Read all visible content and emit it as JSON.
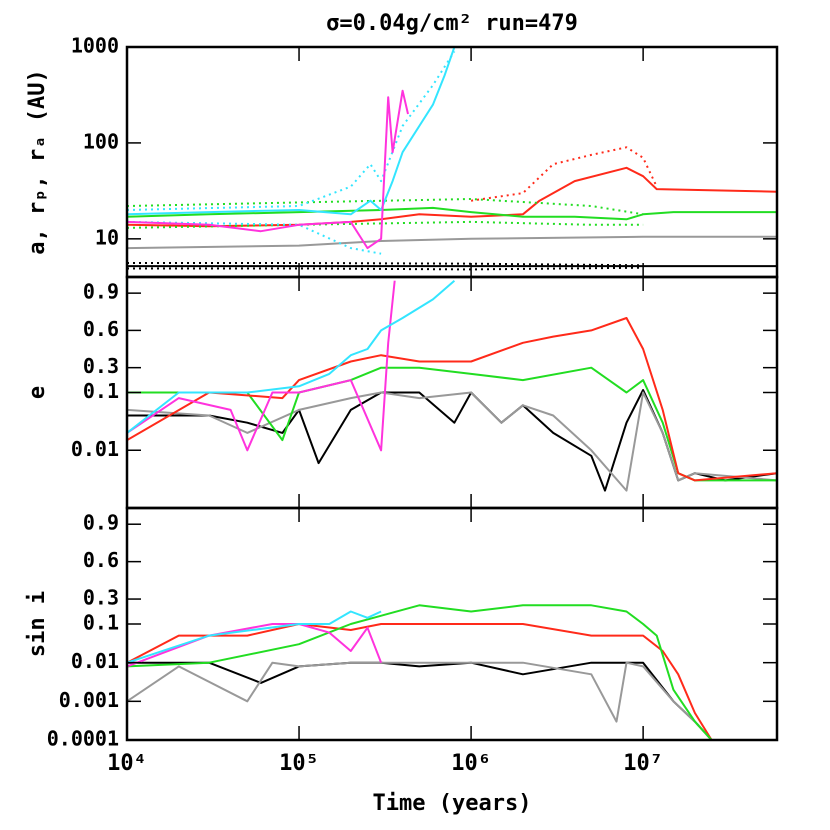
{
  "chart_data": [
    {
      "type": "line",
      "title": "σ=0.04g/cm²   run=479",
      "ylabel": "a, rₚ, rₐ (AU)",
      "xscale": "log",
      "xlim": [
        10000,
        60000000
      ],
      "yscale": "log",
      "ylim": [
        4,
        1000
      ],
      "yticks": [
        10,
        100,
        1000
      ],
      "series": [
        {
          "color": "#000000",
          "x": [
            10000,
            100000,
            1000000,
            10000000,
            60000000
          ],
          "values": [
            5.2,
            5.2,
            5.2,
            5.2,
            5.2
          ]
        },
        {
          "color": "#000000",
          "dash": true,
          "x": [
            10000,
            100000,
            1000000,
            10000000
          ],
          "values": [
            5.6,
            5.6,
            5.5,
            5.3
          ]
        },
        {
          "color": "#000000",
          "dash": true,
          "x": [
            10000,
            100000,
            1000000,
            10000000
          ],
          "values": [
            4.9,
            4.9,
            4.8,
            5.0
          ]
        },
        {
          "color": "#999999",
          "x": [
            10000,
            100000,
            300000,
            1000000,
            10000000,
            60000000
          ],
          "values": [
            8,
            8.5,
            9.5,
            10,
            10.5,
            10.5
          ]
        },
        {
          "color": "#ff2a1a",
          "x": [
            10000,
            30000,
            100000,
            200000,
            300000,
            500000,
            1000000,
            2000000,
            2500000,
            4000000,
            8000000,
            10000000,
            12000000,
            60000000
          ],
          "values": [
            14,
            13.5,
            14,
            15,
            16,
            18,
            17,
            18,
            25,
            40,
            55,
            45,
            33,
            31
          ]
        },
        {
          "color": "#ff2a1a",
          "dash": true,
          "x": [
            1000000,
            2000000,
            3000000,
            5000000,
            8000000,
            10000000,
            12000000
          ],
          "values": [
            25,
            30,
            60,
            75,
            90,
            70,
            35
          ]
        },
        {
          "color": "#22dd22",
          "x": [
            10000,
            30000,
            100000,
            300000,
            600000,
            1000000,
            2000000,
            4000000,
            8000000,
            10000000,
            15000000,
            60000000
          ],
          "values": [
            17,
            18,
            19,
            20,
            21,
            19,
            17,
            17,
            16,
            18,
            19,
            19
          ]
        },
        {
          "color": "#22dd22",
          "dash": true,
          "x": [
            10000,
            100000,
            1000000,
            5000000,
            10000000
          ],
          "values": [
            22,
            24,
            26,
            22,
            18
          ]
        },
        {
          "color": "#22dd22",
          "dash": true,
          "x": [
            10000,
            100000,
            1000000,
            5000000,
            10000000
          ],
          "values": [
            13,
            14,
            15,
            14,
            14
          ]
        },
        {
          "color": "#33e5ff",
          "x": [
            10000,
            30000,
            100000,
            200000,
            260000,
            300000,
            350000,
            400000,
            500000,
            600000,
            700000,
            800000
          ],
          "values": [
            18,
            19,
            20,
            18,
            25,
            20,
            40,
            80,
            150,
            250,
            500,
            1000
          ]
        },
        {
          "color": "#33e5ff",
          "dash": true,
          "x": [
            10000,
            100000,
            200000,
            260000,
            300000,
            400000,
            600000,
            800000
          ],
          "values": [
            20,
            22,
            35,
            60,
            40,
            150,
            400,
            900
          ]
        },
        {
          "color": "#33e5ff",
          "dash": true,
          "x": [
            10000,
            100000,
            200000,
            300000
          ],
          "values": [
            15,
            14,
            8,
            7
          ]
        },
        {
          "color": "#ff33dd",
          "x": [
            10000,
            30000,
            60000,
            100000,
            200000,
            250000,
            300000,
            330000,
            350000,
            400000,
            430000
          ],
          "values": [
            15,
            14,
            12,
            14,
            15,
            8,
            10,
            300,
            80,
            350,
            200
          ]
        }
      ]
    },
    {
      "type": "line",
      "ylabel": "e",
      "xscale": "log",
      "xlim": [
        10000,
        60000000
      ],
      "yscale": "log-linear",
      "linthresh": 0.1,
      "ylim": [
        0.001,
        1.03
      ],
      "yticks": [
        0.01,
        0.1,
        0.3,
        0.6,
        0.9
      ],
      "series": [
        {
          "color": "#000000",
          "x": [
            10000,
            30000,
            50000,
            80000,
            100000,
            130000,
            200000,
            300000,
            500000,
            800000,
            1000000,
            1500000,
            2000000,
            3000000,
            5000000,
            6000000,
            8000000,
            10000000,
            13000000,
            16000000,
            20000000,
            30000000,
            60000000
          ],
          "values": [
            0.04,
            0.04,
            0.03,
            0.02,
            0.05,
            0.006,
            0.05,
            0.1,
            0.1,
            0.03,
            0.1,
            0.03,
            0.06,
            0.02,
            0.008,
            0.002,
            0.03,
            0.12,
            0.02,
            0.003,
            0.004,
            0.003,
            0.004
          ]
        },
        {
          "color": "#999999",
          "x": [
            10000,
            30000,
            50000,
            100000,
            200000,
            300000,
            500000,
            1000000,
            1500000,
            2000000,
            3000000,
            5000000,
            8000000,
            10000000,
            13000000,
            16000000,
            20000000,
            60000000
          ],
          "values": [
            0.05,
            0.04,
            0.02,
            0.05,
            0.08,
            0.1,
            0.08,
            0.1,
            0.03,
            0.06,
            0.04,
            0.01,
            0.002,
            0.1,
            0.02,
            0.003,
            0.004,
            0.003
          ]
        },
        {
          "color": "#22dd22",
          "x": [
            10000,
            20000,
            50000,
            80000,
            100000,
            200000,
            300000,
            500000,
            1000000,
            2000000,
            5000000,
            8000000,
            10000000,
            13000000,
            16000000,
            20000000,
            60000000
          ],
          "values": [
            0.1,
            0.1,
            0.1,
            0.015,
            0.1,
            0.2,
            0.3,
            0.3,
            0.25,
            0.2,
            0.3,
            0.1,
            0.2,
            0.03,
            0.004,
            0.003,
            0.003
          ]
        },
        {
          "color": "#ff2a1a",
          "x": [
            10000,
            30000,
            80000,
            100000,
            200000,
            300000,
            500000,
            1000000,
            2000000,
            3000000,
            5000000,
            8000000,
            10000000,
            13000000,
            16000000,
            20000000,
            60000000
          ],
          "values": [
            0.015,
            0.1,
            0.08,
            0.2,
            0.35,
            0.4,
            0.35,
            0.35,
            0.5,
            0.55,
            0.6,
            0.7,
            0.45,
            0.05,
            0.004,
            0.003,
            0.004
          ]
        },
        {
          "color": "#ff33dd",
          "x": [
            10000,
            20000,
            40000,
            50000,
            70000,
            100000,
            200000,
            300000,
            330000,
            360000
          ],
          "values": [
            0.02,
            0.08,
            0.05,
            0.01,
            0.1,
            0.1,
            0.2,
            0.01,
            0.5,
            1.0
          ]
        },
        {
          "color": "#33e5ff",
          "x": [
            10000,
            20000,
            50000,
            100000,
            150000,
            200000,
            250000,
            300000,
            400000,
            600000,
            800000
          ],
          "values": [
            0.02,
            0.1,
            0.1,
            0.15,
            0.25,
            0.4,
            0.45,
            0.6,
            0.7,
            0.85,
            1.0
          ]
        }
      ]
    },
    {
      "type": "line",
      "ylabel": "sin i",
      "xlabel": "Time (years)",
      "xscale": "log",
      "xlim": [
        10000,
        60000000
      ],
      "xticks": [
        {
          "value": 10000,
          "label": "10⁴"
        },
        {
          "value": 100000,
          "label": "10⁵"
        },
        {
          "value": 1000000,
          "label": "10⁶"
        },
        {
          "value": 10000000,
          "label": "10⁷"
        }
      ],
      "yscale": "log-linear",
      "linthresh": 0.1,
      "ylim": [
        0.0001,
        1.03
      ],
      "yticks": [
        0.0001,
        0.001,
        0.01,
        0.1,
        0.3,
        0.6,
        0.9
      ],
      "series": [
        {
          "color": "#000000",
          "x": [
            10000,
            30000,
            60000,
            100000,
            200000,
            300000,
            500000,
            1000000,
            2000000,
            5000000,
            10000000,
            15000000,
            20000000,
            25000000
          ],
          "values": [
            0.01,
            0.01,
            0.003,
            0.008,
            0.01,
            0.01,
            0.008,
            0.01,
            0.005,
            0.01,
            0.01,
            0.001,
            0.0003,
            0.0001
          ]
        },
        {
          "color": "#999999",
          "x": [
            10000,
            20000,
            50000,
            70000,
            100000,
            200000,
            300000,
            500000,
            1000000,
            2000000,
            5000000,
            7000000,
            8000000,
            10000000,
            15000000,
            20000000,
            25000000
          ],
          "values": [
            0.001,
            0.008,
            0.001,
            0.01,
            0.008,
            0.01,
            0.01,
            0.01,
            0.01,
            0.01,
            0.005,
            0.0003,
            0.01,
            0.008,
            0.001,
            0.0003,
            0.0001
          ]
        },
        {
          "color": "#ff2a1a",
          "x": [
            10000,
            20000,
            50000,
            100000,
            200000,
            300000,
            500000,
            1000000,
            2000000,
            5000000,
            10000000,
            13000000,
            16000000,
            20000000,
            25000000
          ],
          "values": [
            0.01,
            0.05,
            0.05,
            0.1,
            0.07,
            0.1,
            0.1,
            0.1,
            0.1,
            0.05,
            0.05,
            0.02,
            0.005,
            0.0005,
            0.0001
          ]
        },
        {
          "color": "#22dd22",
          "x": [
            10000,
            30000,
            100000,
            200000,
            500000,
            1000000,
            2000000,
            5000000,
            8000000,
            10000000,
            12000000,
            15000000,
            20000000,
            25000000
          ],
          "values": [
            0.008,
            0.01,
            0.03,
            0.1,
            0.25,
            0.2,
            0.25,
            0.25,
            0.2,
            0.1,
            0.05,
            0.002,
            0.0003,
            0.0001
          ]
        },
        {
          "color": "#ff33dd",
          "x": [
            10000,
            30000,
            70000,
            100000,
            150000,
            200000,
            250000,
            300000
          ],
          "values": [
            0.008,
            0.05,
            0.1,
            0.1,
            0.06,
            0.02,
            0.08,
            0.01
          ]
        },
        {
          "color": "#33e5ff",
          "x": [
            10000,
            30000,
            100000,
            150000,
            200000,
            250000,
            300000
          ],
          "values": [
            0.01,
            0.05,
            0.1,
            0.1,
            0.2,
            0.15,
            0.2
          ]
        }
      ]
    }
  ]
}
